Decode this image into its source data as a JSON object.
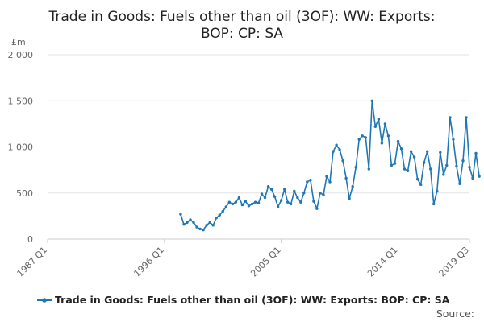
{
  "chart_data": {
    "type": "line",
    "title_lines": [
      "Trade in Goods: Fuels other than oil (3OF): WW: Exports:",
      "BOP: CP: SA"
    ],
    "ylabel": "£m",
    "xlabel": "",
    "ylim": [
      0,
      2000
    ],
    "y_ticks": [
      0,
      500,
      1000,
      1500,
      2000
    ],
    "y_tick_labels": [
      "0",
      "500",
      "1 000",
      "1 500",
      "2 000"
    ],
    "x_range": [
      "1987 Q1",
      "2019 Q3"
    ],
    "x_tick_labels": [
      "1987 Q1",
      "1996 Q1",
      "2005 Q1",
      "2014 Q1",
      "2019 Q3"
    ],
    "grid": true,
    "legend_position": "bottom",
    "series": [
      {
        "name": "Trade in Goods: Fuels other than oil (3OF): WW: Exports: BOP: CP: SA",
        "color": "#1f77b4",
        "start": "1997 Q2",
        "values": [
          270,
          160,
          180,
          210,
          180,
          130,
          110,
          100,
          150,
          180,
          150,
          230,
          260,
          300,
          350,
          400,
          380,
          400,
          450,
          370,
          410,
          360,
          380,
          400,
          390,
          490,
          450,
          570,
          540,
          460,
          350,
          420,
          540,
          400,
          380,
          520,
          450,
          400,
          500,
          620,
          640,
          410,
          330,
          500,
          480,
          680,
          620,
          950,
          1020,
          970,
          850,
          660,
          440,
          570,
          780,
          1080,
          1120,
          1100,
          760,
          1500,
          1220,
          1300,
          1040,
          1250,
          1120,
          800,
          820,
          1060,
          980,
          760,
          740,
          950,
          890,
          650,
          590,
          830,
          950,
          760,
          380,
          520,
          940,
          700,
          800,
          1320,
          1080,
          790,
          600,
          850,
          1320,
          780,
          660,
          930,
          680
        ]
      }
    ],
    "source_label": "Source:"
  }
}
